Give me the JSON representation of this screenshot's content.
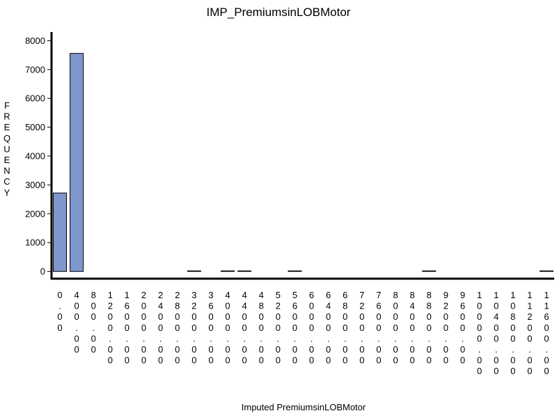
{
  "chart_data": {
    "type": "bar",
    "title": "IMP_PremiumsinLOBMotor",
    "xlabel": "Imputed PremiumsinLOBMotor",
    "ylabel": "FREQUENCY",
    "ylabel_display": "FREQUENCY",
    "ylim": [
      -250,
      8300
    ],
    "yticks": [
      0,
      1000,
      2000,
      3000,
      4000,
      5000,
      6000,
      7000,
      8000
    ],
    "ytick_labels": [
      "0",
      "1000",
      "2000",
      "3000",
      "4000",
      "5000",
      "6000",
      "7000",
      "8000"
    ],
    "grid": false,
    "legend": "none",
    "bar_color": "#7f97cc",
    "categories": [
      "0.00",
      "400.00",
      "800.00",
      "1200.00",
      "1600.00",
      "2000.00",
      "2400.00",
      "2800.00",
      "3200.00",
      "3600.00",
      "4000.00",
      "4400.00",
      "4800.00",
      "5200.00",
      "5600.00",
      "6000.00",
      "6400.00",
      "6800.00",
      "7200.00",
      "7600.00",
      "8000.00",
      "8400.00",
      "8800.00",
      "9200.00",
      "9600.00",
      "10000.00",
      "10400.00",
      "10800.00",
      "11200.00",
      "11600.00"
    ],
    "values": [
      2720,
      7560,
      0,
      0,
      0,
      0,
      0,
      0,
      4,
      0,
      3,
      3,
      0,
      0,
      2,
      0,
      0,
      0,
      0,
      0,
      0,
      0,
      1,
      0,
      0,
      0,
      0,
      0,
      0,
      1
    ]
  }
}
